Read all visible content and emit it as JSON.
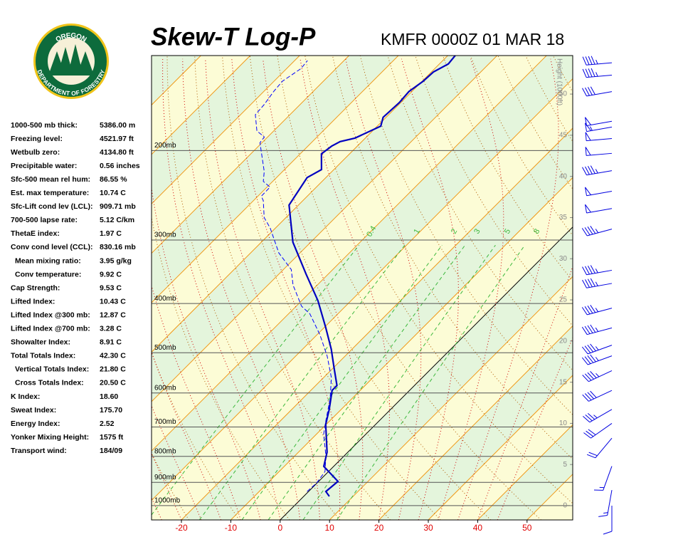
{
  "logo": {
    "top": "OREGON",
    "bottom": "DEPARTMENT OF FORESTRY"
  },
  "indices": [
    [
      "1000-500 mb thick:",
      "5386.00 m"
    ],
    [
      "Freezing level:",
      "4521.97 ft"
    ],
    [
      "Wetbulb zero:",
      "4134.80 ft"
    ],
    [
      "Precipitable water:",
      "0.56 inches"
    ],
    [
      "Sfc-500 mean rel hum:",
      "86.55 %"
    ],
    [
      "Est. max temperature:",
      "10.74 C"
    ],
    [
      "Sfc-Lift cond lev (LCL):",
      "909.71 mb"
    ],
    [
      "700-500 lapse rate:",
      "5.12 C/km"
    ],
    [
      "ThetaE index:",
      "1.97 C"
    ],
    [
      "Conv cond level (CCL):",
      "830.16 mb"
    ],
    [
      "Mean mixing ratio:",
      "3.95 g/kg"
    ],
    [
      "Conv temperature:",
      "9.92 C"
    ],
    [
      "Cap Strength:",
      "9.53 C"
    ],
    [
      "Lifted Index:",
      "10.43 C"
    ],
    [
      "Lifted Index @300 mb:",
      "12.87 C"
    ],
    [
      "Lifted Index @700 mb:",
      "3.28 C"
    ],
    [
      "Showalter Index:",
      "8.91 C"
    ],
    [
      "Total Totals Index:",
      "42.30 C"
    ],
    [
      "Vertical Totals Index:",
      "21.80 C"
    ],
    [
      "Cross Totals Index:",
      "20.50 C"
    ],
    [
      "K Index:",
      "18.60"
    ],
    [
      "Sweat Index:",
      "175.70"
    ],
    [
      "Energy Index:",
      "2.52"
    ],
    [
      "Yonker Mixing Height:",
      "1575 ft"
    ],
    [
      "Transport wind:",
      "184/09"
    ]
  ],
  "chart_data": {
    "type": "skew-t",
    "title": "Skew-T Log-P",
    "subtitle": "KMFR 0000Z 01 MAR 18",
    "xlim": [
      -26.05,
      59.25
    ],
    "xticks": [
      -20,
      -10,
      0,
      10,
      20,
      30,
      40,
      50
    ],
    "ylim": [
      1067,
      130
    ],
    "y_scale": "log",
    "yticks": [
      {
        "value": 200,
        "label": "200mb"
      },
      {
        "value": 300,
        "label": "300mb"
      },
      {
        "value": 400,
        "label": "400mb"
      },
      {
        "value": 500,
        "label": "500mb"
      },
      {
        "value": 600,
        "label": "600mb"
      },
      {
        "value": 700,
        "label": "700mb"
      },
      {
        "value": 800,
        "label": "800mb"
      },
      {
        "value": 900,
        "label": "900mb"
      },
      {
        "value": 1000,
        "label": "1000mb"
      }
    ],
    "y2label": "Height (1000ft)",
    "y2lim": [
      -1.73,
      54.68
    ],
    "y2ticks": [
      0,
      5,
      10,
      15,
      20,
      25,
      30,
      35,
      40,
      45,
      50
    ],
    "mixing_ratio_lines": [
      0.4,
      1,
      2,
      3,
      5,
      8
    ],
    "temperature": {
      "color": "#0000c0",
      "pressure": [
        959,
        938,
        896,
        837,
        785,
        692,
        647,
        593,
        580,
        535,
        492,
        446,
        395,
        350,
        303,
        256,
        226,
        218,
        203,
        196,
        192,
        189,
        179,
        172,
        161,
        153,
        146,
        140,
        135,
        130
      ],
      "values": [
        5.2,
        3.5,
        3.9,
        -2.0,
        -4.2,
        -10.1,
        -12.4,
        -15.7,
        -15.7,
        -19.9,
        -24.2,
        -29.7,
        -36.7,
        -44.5,
        -53.6,
        -61.9,
        -63.8,
        -62.5,
        -65.7,
        -65.2,
        -64.4,
        -62.1,
        -59.3,
        -60.6,
        -60.3,
        -60.6,
        -59.8,
        -59.6,
        -58.2,
        -58.5
      ]
    },
    "dewpoint": {
      "color": "#0000ff",
      "pressure": [
        938,
        902,
        857,
        798,
        724,
        679,
        616,
        560,
        508,
        461,
        419,
        405,
        368,
        343,
        318,
        284,
        271,
        251,
        246,
        236,
        230,
        220,
        193,
        188,
        183,
        170,
        162,
        153,
        146,
        138,
        133
      ],
      "values": [
        -0.3,
        -0.1,
        -0.7,
        -3.7,
        -8.5,
        -10.9,
        -14.4,
        -18.4,
        -23.6,
        -29.4,
        -35.7,
        -38.9,
        -44.9,
        -48.4,
        -54.3,
        -61.1,
        -64.4,
        -68.0,
        -69.3,
        -69.4,
        -71.9,
        -73.7,
        -80.4,
        -80.7,
        -83.4,
        -87.0,
        -87.3,
        -88.0,
        -88.3,
        -87.1,
        -87.4
      ]
    },
    "wind": {
      "color": "#0000e0",
      "heights": [
        53.8,
        52.3,
        50.3,
        46.7,
        46.0,
        44.6,
        42.8,
        40.7,
        38.2,
        36.1,
        33.6,
        28.6,
        27.0,
        24.0,
        21.6,
        19.5,
        18.2,
        16.4,
        14.0,
        11.7,
        10.0,
        8.2,
        4.8,
        1.9,
        0.0
      ],
      "directions": [
        265,
        265,
        260,
        260,
        260,
        265,
        265,
        260,
        260,
        260,
        255,
        260,
        260,
        255,
        255,
        250,
        250,
        245,
        245,
        240,
        235,
        220,
        200,
        190,
        180
      ],
      "speeds": [
        45,
        45,
        40,
        50,
        55,
        50,
        50,
        45,
        50,
        50,
        45,
        45,
        45,
        45,
        45,
        45,
        45,
        45,
        40,
        35,
        30,
        20,
        15,
        15,
        10
      ]
    }
  }
}
